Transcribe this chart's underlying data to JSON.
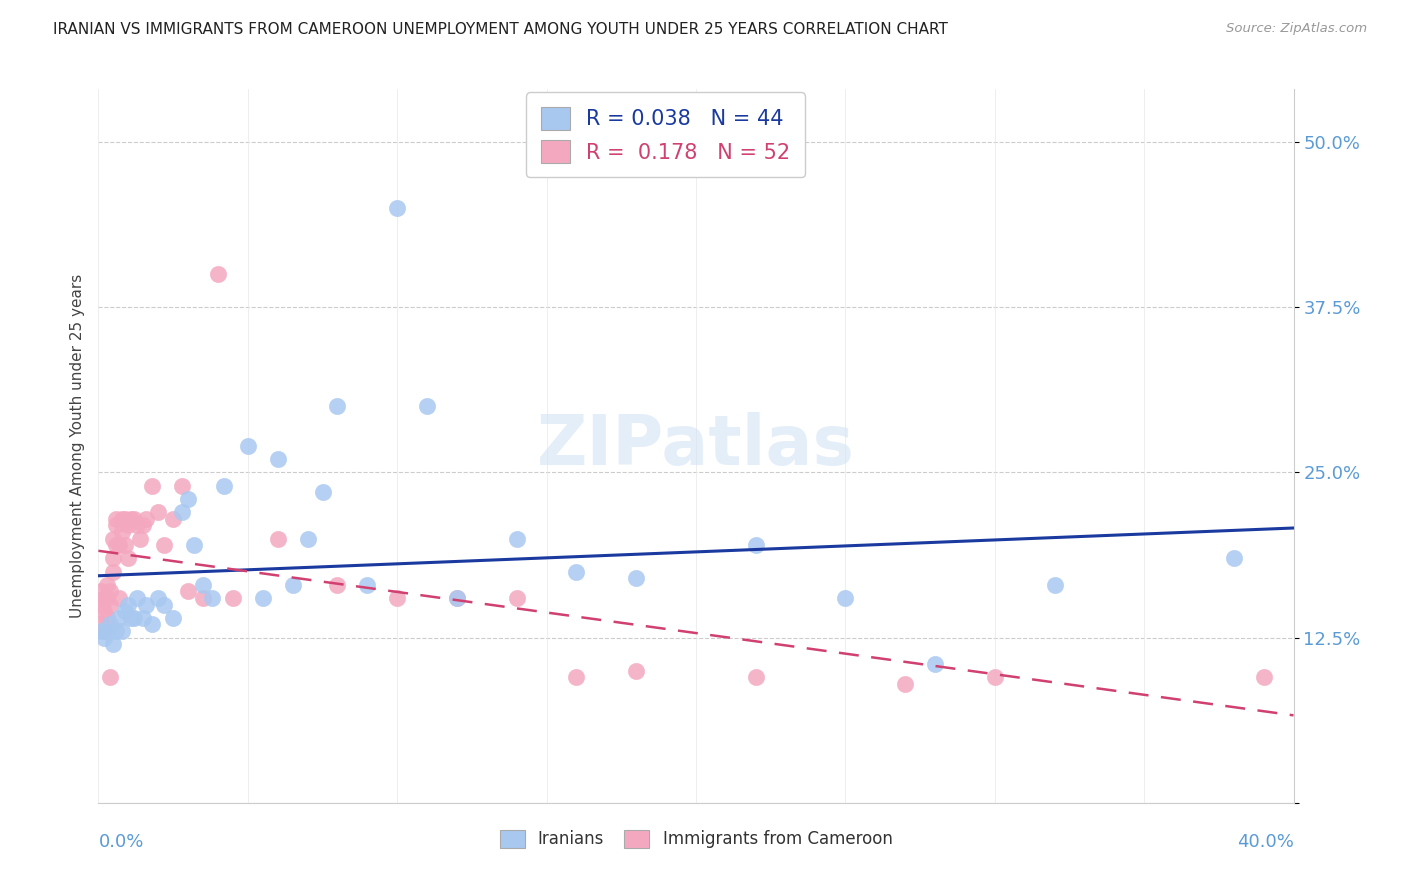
{
  "title": "IRANIAN VS IMMIGRANTS FROM CAMEROON UNEMPLOYMENT AMONG YOUTH UNDER 25 YEARS CORRELATION CHART",
  "source": "Source: ZipAtlas.com",
  "ylabel": "Unemployment Among Youth under 25 years",
  "xlim": [
    0.0,
    0.4
  ],
  "ylim": [
    0.0,
    0.54
  ],
  "ytick_vals": [
    0.0,
    0.125,
    0.25,
    0.375,
    0.5
  ],
  "ytick_labels": [
    "",
    "12.5%",
    "25.0%",
    "37.5%",
    "50.0%"
  ],
  "legend_blue_R": "0.038",
  "legend_blue_N": "44",
  "legend_pink_R": "0.178",
  "legend_pink_N": "52",
  "legend_label_blue": "Iranians",
  "legend_label_pink": "Immigrants from Cameroon",
  "blue_scatter_color": "#a8c8f0",
  "pink_scatter_color": "#f4a8c0",
  "blue_line_color": "#1a3a9f",
  "pink_line_color": "#d04070",
  "title_color": "#222222",
  "source_color": "#999999",
  "axis_label_color": "#444444",
  "tick_color": "#5b9bd5",
  "grid_color": "#cccccc",
  "watermark_color": "#cfe0f4",
  "iranians_x": [
    0.001,
    0.002,
    0.003,
    0.004,
    0.005,
    0.006,
    0.007,
    0.008,
    0.009,
    0.01,
    0.011,
    0.012,
    0.013,
    0.015,
    0.016,
    0.018,
    0.02,
    0.022,
    0.025,
    0.028,
    0.03,
    0.032,
    0.035,
    0.038,
    0.042,
    0.05,
    0.055,
    0.06,
    0.065,
    0.07,
    0.075,
    0.08,
    0.09,
    0.1,
    0.11,
    0.12,
    0.14,
    0.16,
    0.18,
    0.22,
    0.25,
    0.28,
    0.32,
    0.38
  ],
  "iranians_y": [
    0.13,
    0.125,
    0.13,
    0.135,
    0.12,
    0.13,
    0.14,
    0.13,
    0.145,
    0.15,
    0.14,
    0.14,
    0.155,
    0.14,
    0.15,
    0.135,
    0.155,
    0.15,
    0.14,
    0.22,
    0.23,
    0.195,
    0.165,
    0.155,
    0.24,
    0.27,
    0.155,
    0.26,
    0.165,
    0.2,
    0.235,
    0.3,
    0.165,
    0.45,
    0.3,
    0.155,
    0.2,
    0.175,
    0.17,
    0.195,
    0.155,
    0.105,
    0.165,
    0.185
  ],
  "cameroon_x": [
    0.001,
    0.001,
    0.001,
    0.002,
    0.002,
    0.002,
    0.003,
    0.003,
    0.003,
    0.004,
    0.004,
    0.004,
    0.005,
    0.005,
    0.005,
    0.006,
    0.006,
    0.006,
    0.007,
    0.007,
    0.008,
    0.008,
    0.009,
    0.009,
    0.01,
    0.01,
    0.011,
    0.012,
    0.013,
    0.014,
    0.015,
    0.016,
    0.018,
    0.02,
    0.022,
    0.025,
    0.028,
    0.03,
    0.035,
    0.04,
    0.045,
    0.06,
    0.08,
    0.1,
    0.12,
    0.14,
    0.16,
    0.18,
    0.22,
    0.27,
    0.3,
    0.39
  ],
  "cameroon_y": [
    0.135,
    0.15,
    0.16,
    0.13,
    0.145,
    0.155,
    0.14,
    0.155,
    0.165,
    0.095,
    0.15,
    0.16,
    0.175,
    0.185,
    0.2,
    0.215,
    0.195,
    0.21,
    0.155,
    0.195,
    0.205,
    0.215,
    0.215,
    0.195,
    0.21,
    0.185,
    0.215,
    0.215,
    0.21,
    0.2,
    0.21,
    0.215,
    0.24,
    0.22,
    0.195,
    0.215,
    0.24,
    0.16,
    0.155,
    0.4,
    0.155,
    0.2,
    0.165,
    0.155,
    0.155,
    0.155,
    0.095,
    0.1,
    0.095,
    0.09,
    0.095,
    0.095
  ]
}
